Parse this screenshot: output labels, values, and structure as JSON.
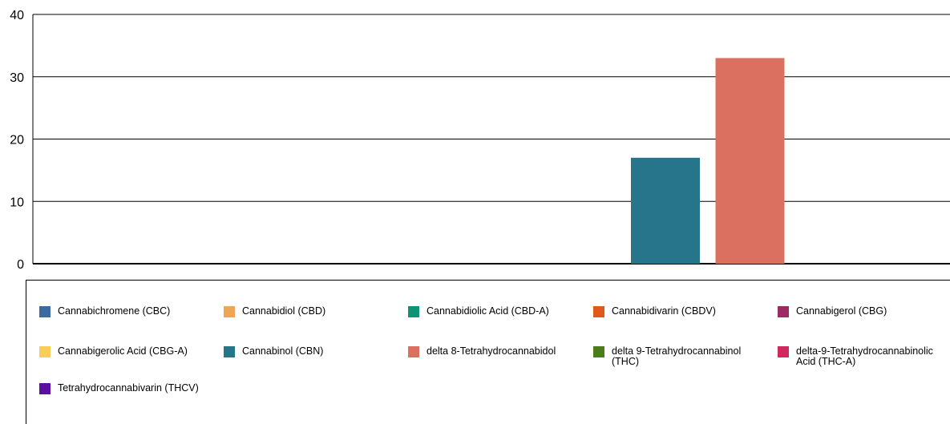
{
  "chart_data": {
    "type": "bar",
    "title": "",
    "xlabel": "",
    "ylabel": "",
    "ylim": [
      0,
      40
    ],
    "yticks": [
      "0",
      "10",
      "20",
      "30",
      "40"
    ],
    "grid": true,
    "legend_position": "bottom",
    "series": [
      {
        "name": "Cannabichromene (CBC)",
        "color": "#3d6aa0",
        "value": 0
      },
      {
        "name": "Cannabidiol (CBD)",
        "color": "#f0a554",
        "value": 0
      },
      {
        "name": "Cannabidiolic Acid (CBD-A)",
        "color": "#0e9475",
        "value": 0
      },
      {
        "name": "Cannabidivarin (CBDV)",
        "color": "#e05a1e",
        "value": 0
      },
      {
        "name": "Cannabigerol (CBG)",
        "color": "#9c2a63",
        "value": 0
      },
      {
        "name": "Cannabigerolic Acid (CBG-A)",
        "color": "#f8cd5a",
        "value": 0
      },
      {
        "name": "Cannabinol (CBN)",
        "color": "#27758a",
        "value": 17
      },
      {
        "name": "delta 8-Tetrahydrocannabidol",
        "color": "#db7060",
        "value": 33
      },
      {
        "name": "delta 9-Tetrahydrocannabinol (THC)",
        "color": "#4a7c1e",
        "value": 0
      },
      {
        "name": "delta-9-Tetrahydrocannabinolic Acid (THC-A)",
        "color": "#cf2a5e",
        "value": 0
      },
      {
        "name": "Tetrahydrocannabivarin (THCV)",
        "color": "#5a0fa0",
        "value": 0
      }
    ]
  }
}
